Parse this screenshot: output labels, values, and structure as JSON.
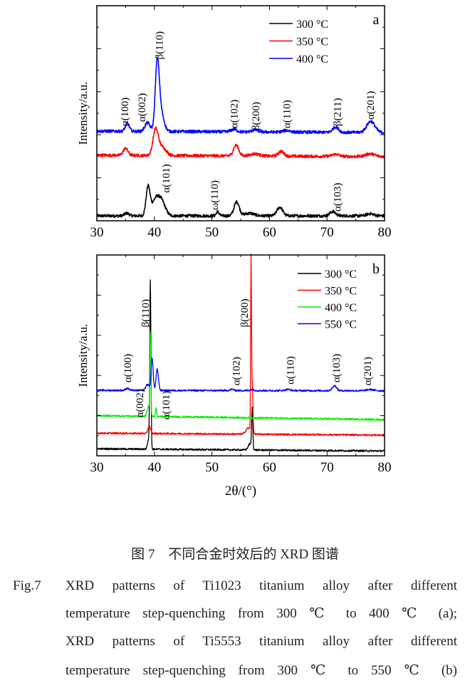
{
  "chart_data": [
    {
      "type": "line",
      "panel_label": "a",
      "xlabel": "",
      "ylabel": "Intensity/a.u.",
      "xlim": [
        30,
        80
      ],
      "ylim": [
        0,
        100
      ],
      "xticks": [
        30,
        40,
        50,
        60,
        70,
        80
      ],
      "legend_position": "top-right",
      "series": [
        {
          "name": "300 °C",
          "color": "#000000",
          "baseline": [
            2.3,
            2.3
          ],
          "peaks": [
            [
              35.2,
              1.2,
              0.4
            ],
            [
              38.9,
              13,
              0.35
            ],
            [
              40.3,
              8,
              0.7
            ],
            [
              41.4,
              5,
              0.6
            ],
            [
              51.0,
              2,
              0.25
            ],
            [
              54.3,
              6.5,
              0.45
            ],
            [
              56.5,
              1.2,
              0.8
            ],
            [
              61.8,
              4,
              0.5
            ],
            [
              71.0,
              2,
              0.5
            ],
            [
              77.5,
              1,
              0.6
            ]
          ]
        },
        {
          "name": "350 °C",
          "color": "#ff0000",
          "baseline": [
            30.5,
            29.8
          ],
          "peaks": [
            [
              35.0,
              3.3,
              0.4
            ],
            [
              40.2,
              11.5,
              0.45
            ],
            [
              41.3,
              4,
              0.7
            ],
            [
              54.2,
              5,
              0.45
            ],
            [
              57.5,
              1,
              0.8
            ],
            [
              62.0,
              2.2,
              0.5
            ],
            [
              71.5,
              1,
              0.6
            ],
            [
              77.5,
              1.3,
              0.8
            ]
          ]
        },
        {
          "name": "400 °C",
          "color": "#0000ff",
          "baseline": [
            41.7,
            41.0
          ],
          "peaks": [
            [
              35.3,
              3.6,
              0.35
            ],
            [
              38.8,
              4,
              0.45
            ],
            [
              40.5,
              31,
              0.35
            ],
            [
              41.2,
              8,
              0.5
            ],
            [
              53.8,
              1.2,
              0.5
            ],
            [
              57.5,
              1,
              0.5
            ],
            [
              63.0,
              0.8,
              0.6
            ],
            [
              71.5,
              2.5,
              0.5
            ],
            [
              77.6,
              5.2,
              0.7
            ]
          ]
        }
      ],
      "annotations": [
        {
          "text": "α(100)",
          "x": 34.8,
          "y": 44
        },
        {
          "text": "α(002)",
          "x": 37.8,
          "y": 46
        },
        {
          "text": "β(110)",
          "x": 40.8,
          "y": 75
        },
        {
          "text": "α(102)",
          "x": 53.8,
          "y": 43
        },
        {
          "text": "β(200)",
          "x": 57.6,
          "y": 42
        },
        {
          "text": "α(110)",
          "x": 63.0,
          "y": 43
        },
        {
          "text": "β(211)",
          "x": 71.8,
          "y": 44
        },
        {
          "text": "α(201)",
          "x": 77.5,
          "y": 47
        },
        {
          "text": "α(101)",
          "x": 42.0,
          "y": 13
        },
        {
          "text": "ω(110)",
          "x": 50.4,
          "y": 5
        },
        {
          "text": "α(103)",
          "x": 71.8,
          "y": 4.3
        }
      ]
    },
    {
      "type": "line",
      "panel_label": "b",
      "xlabel": "2θ/(°)",
      "ylabel": "Intensity/a.u.",
      "xlim": [
        30,
        80
      ],
      "ylim": [
        0,
        100
      ],
      "xticks": [
        30,
        40,
        50,
        60,
        70,
        80
      ],
      "legend_position": "top-right",
      "series": [
        {
          "name": "300 °C",
          "color": "#000000",
          "baseline": [
            3.5,
            2.4
          ],
          "peaks": [
            [
              39.3,
              83,
              0.1
            ],
            [
              39.0,
              5,
              0.2
            ],
            [
              57.0,
              20,
              0.1
            ],
            [
              56.6,
              3,
              0.3
            ]
          ]
        },
        {
          "name": "350 °C",
          "color": "#ff0000",
          "baseline": [
            11.3,
            10.3
          ],
          "peaks": [
            [
              39.1,
              4,
              0.2
            ],
            [
              56.8,
              82,
              0.07
            ],
            [
              57.0,
              25,
              0.12
            ],
            [
              56.3,
              3,
              0.4
            ]
          ]
        },
        {
          "name": "400 °C",
          "color": "#00ee00",
          "baseline": [
            20.0,
            18.0
          ],
          "peaks": [
            [
              39.3,
              40,
              0.08
            ],
            [
              39.0,
              5,
              0.25
            ],
            [
              40.3,
              4,
              0.1
            ]
          ]
        },
        {
          "name": "550 °C",
          "color": "#0000ff",
          "baseline": [
            32.6,
            32.4
          ],
          "peaks": [
            [
              35.3,
              1,
              0.3
            ],
            [
              38.8,
              3,
              0.3
            ],
            [
              39.6,
              16,
              0.18
            ],
            [
              40.5,
              10.5,
              0.2
            ],
            [
              53.5,
              0.6,
              0.3
            ],
            [
              57.0,
              0.6,
              0.3
            ],
            [
              63.2,
              0.6,
              0.4
            ],
            [
              71.3,
              2.5,
              0.35
            ],
            [
              77.5,
              0.6,
              0.6
            ]
          ]
        }
      ],
      "annotations": [
        {
          "text": "α(100)",
          "x": 35.3,
          "y": 36.5
        },
        {
          "text": "β(110)",
          "x": 38.4,
          "y": 64
        },
        {
          "text": "β(200)",
          "x": 55.6,
          "y": 64
        },
        {
          "text": "α(102)",
          "x": 54.2,
          "y": 35
        },
        {
          "text": "α(110)",
          "x": 63.6,
          "y": 35.5
        },
        {
          "text": "α(103)",
          "x": 71.6,
          "y": 36.5
        },
        {
          "text": "α(201)",
          "x": 77.0,
          "y": 35
        },
        {
          "text": "α(002)",
          "x": 37.4,
          "y": 19
        },
        {
          "text": "α(101)",
          "x": 42.0,
          "y": 18
        }
      ]
    }
  ],
  "caption": {
    "cn": "图 7　不同合金时效后的 XRD 图谱",
    "fig_label": "Fig.7",
    "lines": [
      "XRD patterns of Ti1023 titanium alloy after different",
      "temperature step-quenching from 300 ℃ to 400 ℃ (a);",
      "XRD patterns of Ti5553 titanium alloy after different",
      "temperature step-quenching from 300 ℃ to 550 ℃ (b)"
    ]
  }
}
